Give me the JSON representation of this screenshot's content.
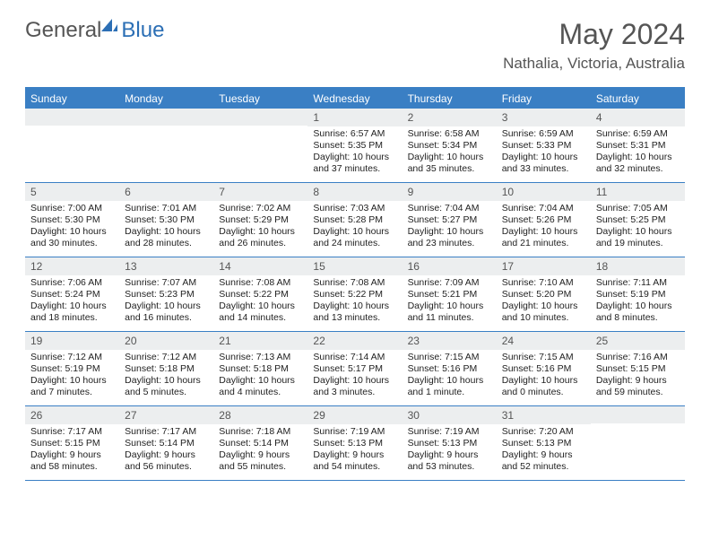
{
  "logo": {
    "general": "General",
    "blue": "Blue"
  },
  "title": "May 2024",
  "location": "Nathalia, Victoria, Australia",
  "colors": {
    "header_bg": "#3a7fc4",
    "header_text": "#ffffff",
    "daynum_bg": "#eceeef",
    "border": "#3a7fc4",
    "text": "#222222",
    "title_color": "#555555"
  },
  "weekdays": [
    "Sunday",
    "Monday",
    "Tuesday",
    "Wednesday",
    "Thursday",
    "Friday",
    "Saturday"
  ],
  "weeks": [
    [
      {
        "empty": true
      },
      {
        "empty": true
      },
      {
        "empty": true
      },
      {
        "num": "1",
        "sunrise": "Sunrise: 6:57 AM",
        "sunset": "Sunset: 5:35 PM",
        "daylight": "Daylight: 10 hours and 37 minutes."
      },
      {
        "num": "2",
        "sunrise": "Sunrise: 6:58 AM",
        "sunset": "Sunset: 5:34 PM",
        "daylight": "Daylight: 10 hours and 35 minutes."
      },
      {
        "num": "3",
        "sunrise": "Sunrise: 6:59 AM",
        "sunset": "Sunset: 5:33 PM",
        "daylight": "Daylight: 10 hours and 33 minutes."
      },
      {
        "num": "4",
        "sunrise": "Sunrise: 6:59 AM",
        "sunset": "Sunset: 5:31 PM",
        "daylight": "Daylight: 10 hours and 32 minutes."
      }
    ],
    [
      {
        "num": "5",
        "sunrise": "Sunrise: 7:00 AM",
        "sunset": "Sunset: 5:30 PM",
        "daylight": "Daylight: 10 hours and 30 minutes."
      },
      {
        "num": "6",
        "sunrise": "Sunrise: 7:01 AM",
        "sunset": "Sunset: 5:30 PM",
        "daylight": "Daylight: 10 hours and 28 minutes."
      },
      {
        "num": "7",
        "sunrise": "Sunrise: 7:02 AM",
        "sunset": "Sunset: 5:29 PM",
        "daylight": "Daylight: 10 hours and 26 minutes."
      },
      {
        "num": "8",
        "sunrise": "Sunrise: 7:03 AM",
        "sunset": "Sunset: 5:28 PM",
        "daylight": "Daylight: 10 hours and 24 minutes."
      },
      {
        "num": "9",
        "sunrise": "Sunrise: 7:04 AM",
        "sunset": "Sunset: 5:27 PM",
        "daylight": "Daylight: 10 hours and 23 minutes."
      },
      {
        "num": "10",
        "sunrise": "Sunrise: 7:04 AM",
        "sunset": "Sunset: 5:26 PM",
        "daylight": "Daylight: 10 hours and 21 minutes."
      },
      {
        "num": "11",
        "sunrise": "Sunrise: 7:05 AM",
        "sunset": "Sunset: 5:25 PM",
        "daylight": "Daylight: 10 hours and 19 minutes."
      }
    ],
    [
      {
        "num": "12",
        "sunrise": "Sunrise: 7:06 AM",
        "sunset": "Sunset: 5:24 PM",
        "daylight": "Daylight: 10 hours and 18 minutes."
      },
      {
        "num": "13",
        "sunrise": "Sunrise: 7:07 AM",
        "sunset": "Sunset: 5:23 PM",
        "daylight": "Daylight: 10 hours and 16 minutes."
      },
      {
        "num": "14",
        "sunrise": "Sunrise: 7:08 AM",
        "sunset": "Sunset: 5:22 PM",
        "daylight": "Daylight: 10 hours and 14 minutes."
      },
      {
        "num": "15",
        "sunrise": "Sunrise: 7:08 AM",
        "sunset": "Sunset: 5:22 PM",
        "daylight": "Daylight: 10 hours and 13 minutes."
      },
      {
        "num": "16",
        "sunrise": "Sunrise: 7:09 AM",
        "sunset": "Sunset: 5:21 PM",
        "daylight": "Daylight: 10 hours and 11 minutes."
      },
      {
        "num": "17",
        "sunrise": "Sunrise: 7:10 AM",
        "sunset": "Sunset: 5:20 PM",
        "daylight": "Daylight: 10 hours and 10 minutes."
      },
      {
        "num": "18",
        "sunrise": "Sunrise: 7:11 AM",
        "sunset": "Sunset: 5:19 PM",
        "daylight": "Daylight: 10 hours and 8 minutes."
      }
    ],
    [
      {
        "num": "19",
        "sunrise": "Sunrise: 7:12 AM",
        "sunset": "Sunset: 5:19 PM",
        "daylight": "Daylight: 10 hours and 7 minutes."
      },
      {
        "num": "20",
        "sunrise": "Sunrise: 7:12 AM",
        "sunset": "Sunset: 5:18 PM",
        "daylight": "Daylight: 10 hours and 5 minutes."
      },
      {
        "num": "21",
        "sunrise": "Sunrise: 7:13 AM",
        "sunset": "Sunset: 5:18 PM",
        "daylight": "Daylight: 10 hours and 4 minutes."
      },
      {
        "num": "22",
        "sunrise": "Sunrise: 7:14 AM",
        "sunset": "Sunset: 5:17 PM",
        "daylight": "Daylight: 10 hours and 3 minutes."
      },
      {
        "num": "23",
        "sunrise": "Sunrise: 7:15 AM",
        "sunset": "Sunset: 5:16 PM",
        "daylight": "Daylight: 10 hours and 1 minute."
      },
      {
        "num": "24",
        "sunrise": "Sunrise: 7:15 AM",
        "sunset": "Sunset: 5:16 PM",
        "daylight": "Daylight: 10 hours and 0 minutes."
      },
      {
        "num": "25",
        "sunrise": "Sunrise: 7:16 AM",
        "sunset": "Sunset: 5:15 PM",
        "daylight": "Daylight: 9 hours and 59 minutes."
      }
    ],
    [
      {
        "num": "26",
        "sunrise": "Sunrise: 7:17 AM",
        "sunset": "Sunset: 5:15 PM",
        "daylight": "Daylight: 9 hours and 58 minutes."
      },
      {
        "num": "27",
        "sunrise": "Sunrise: 7:17 AM",
        "sunset": "Sunset: 5:14 PM",
        "daylight": "Daylight: 9 hours and 56 minutes."
      },
      {
        "num": "28",
        "sunrise": "Sunrise: 7:18 AM",
        "sunset": "Sunset: 5:14 PM",
        "daylight": "Daylight: 9 hours and 55 minutes."
      },
      {
        "num": "29",
        "sunrise": "Sunrise: 7:19 AM",
        "sunset": "Sunset: 5:13 PM",
        "daylight": "Daylight: 9 hours and 54 minutes."
      },
      {
        "num": "30",
        "sunrise": "Sunrise: 7:19 AM",
        "sunset": "Sunset: 5:13 PM",
        "daylight": "Daylight: 9 hours and 53 minutes."
      },
      {
        "num": "31",
        "sunrise": "Sunrise: 7:20 AM",
        "sunset": "Sunset: 5:13 PM",
        "daylight": "Daylight: 9 hours and 52 minutes."
      },
      {
        "empty": true
      }
    ]
  ]
}
